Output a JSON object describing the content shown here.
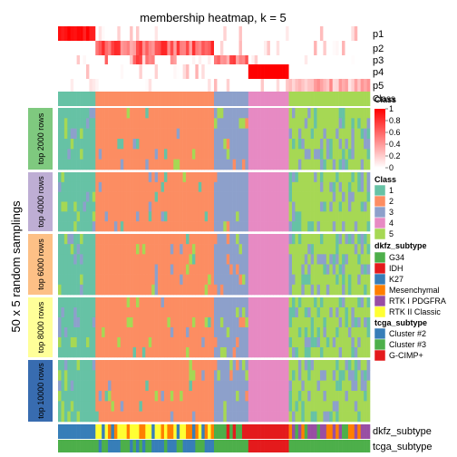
{
  "chart_data": {
    "type": "heatmap",
    "title": "membership heatmap, k = 5",
    "ylabel": "50 x 5 random samplings",
    "n_samples": 100,
    "membership_rows": [
      "p1",
      "p2",
      "p3",
      "p4",
      "p5"
    ],
    "class_row_label": "Class",
    "groups": [
      {
        "label": "top 2000 rows",
        "color": "#7fc97f"
      },
      {
        "label": "top 4000 rows",
        "color": "#beaed4"
      },
      {
        "label": "top 6000 rows",
        "color": "#fdc086"
      },
      {
        "label": "top 8000 rows",
        "color": "#ffff99"
      },
      {
        "label": "top 10000 rows",
        "color": "#386cb0"
      }
    ],
    "class_colors": {
      "1": "#66c2a5",
      "2": "#fc8d62",
      "3": "#8da0cb",
      "4": "#e78ac3",
      "5": "#a6d854"
    },
    "sample_class_blocks": [
      {
        "class": "1",
        "count": 12
      },
      {
        "class": "2",
        "count": 38
      },
      {
        "class": "3",
        "count": 11
      },
      {
        "class": "4",
        "count": 13
      },
      {
        "class": "5",
        "count": 26
      }
    ],
    "dkfz_subtype_label": "dkfz_subtype",
    "tcga_subtype_label": "tcga_subtype",
    "legend": {
      "membership": {
        "title": "Class",
        "ticks": [
          "1",
          "0.8",
          "0.6",
          "0.4",
          "0.2",
          "0"
        ]
      },
      "class": {
        "title": "Class",
        "items": [
          "1",
          "2",
          "3",
          "4",
          "5"
        ]
      },
      "dkfz": {
        "title": "dkfz_subtype",
        "items": [
          {
            "label": "G34",
            "color": "#4daf4a"
          },
          {
            "label": "IDH",
            "color": "#e41a1c"
          },
          {
            "label": "K27",
            "color": "#377eb8"
          },
          {
            "label": "Mesenchymal",
            "color": "#ff7f00"
          },
          {
            "label": "RTK I PDGFRA",
            "color": "#984ea3"
          },
          {
            "label": "RTK II Classic",
            "color": "#ffff33"
          }
        ]
      },
      "tcga": {
        "title": "tcga_subtype",
        "items": [
          {
            "label": "Cluster #2",
            "color": "#377eb8"
          },
          {
            "label": "Cluster #3",
            "color": "#4daf4a"
          },
          {
            "label": "G-CIMP+",
            "color": "#e41a1c"
          }
        ]
      }
    }
  }
}
